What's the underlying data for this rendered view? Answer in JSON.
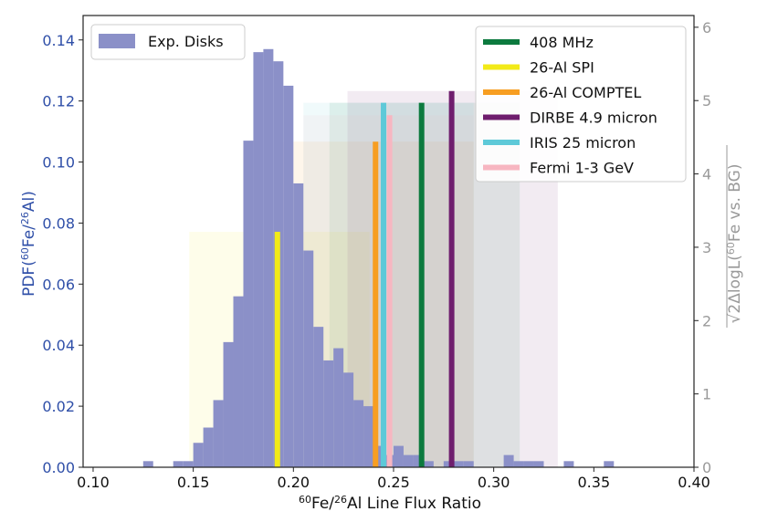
{
  "chart_data": {
    "type": "bar",
    "xlabel_parts": {
      "sup1": "60",
      "base1": "Fe/",
      "sup2": "26",
      "base2": "Al Line Flux Ratio"
    },
    "ylabel_left_parts": {
      "pre": "PDF(",
      "sup1": "60",
      "mid": "Fe/",
      "sup2": "26",
      "post": "Al)"
    },
    "ylabel_right_parts": {
      "root": "√",
      "pre": "2ΔlogL(",
      "sup": "60",
      "post": "Fe vs. BG)"
    },
    "xlim": [
      0.095,
      0.4
    ],
    "ylim_left": [
      0,
      0.148
    ],
    "ylim_right": [
      0,
      6.16
    ],
    "x_ticks": [
      "0.10",
      "0.15",
      "0.20",
      "0.25",
      "0.30",
      "0.35",
      "0.40"
    ],
    "x_tick_values": [
      0.1,
      0.15,
      0.2,
      0.25,
      0.3,
      0.35,
      0.4
    ],
    "y_left_ticks": [
      "0.00",
      "0.02",
      "0.04",
      "0.06",
      "0.08",
      "0.10",
      "0.12",
      "0.14"
    ],
    "y_left_tick_values": [
      0.0,
      0.02,
      0.04,
      0.06,
      0.08,
      0.1,
      0.12,
      0.14
    ],
    "y_right_ticks": [
      "0",
      "1",
      "2",
      "3",
      "4",
      "5",
      "6"
    ],
    "y_right_tick_values": [
      0,
      1,
      2,
      3,
      4,
      5,
      6
    ],
    "histogram": {
      "name": "Exp. Disks",
      "color": "#8b90c8",
      "bins": [
        [
          0.125,
          0.13,
          0.002
        ],
        [
          0.14,
          0.145,
          0.002
        ],
        [
          0.145,
          0.15,
          0.002
        ],
        [
          0.15,
          0.155,
          0.008
        ],
        [
          0.155,
          0.16,
          0.013
        ],
        [
          0.16,
          0.165,
          0.022
        ],
        [
          0.165,
          0.17,
          0.041
        ],
        [
          0.17,
          0.175,
          0.056
        ],
        [
          0.175,
          0.18,
          0.107
        ],
        [
          0.18,
          0.185,
          0.136
        ],
        [
          0.185,
          0.19,
          0.137
        ],
        [
          0.19,
          0.195,
          0.133
        ],
        [
          0.195,
          0.2,
          0.125
        ],
        [
          0.2,
          0.205,
          0.093
        ],
        [
          0.205,
          0.21,
          0.071
        ],
        [
          0.21,
          0.215,
          0.046
        ],
        [
          0.215,
          0.22,
          0.035
        ],
        [
          0.22,
          0.225,
          0.039
        ],
        [
          0.225,
          0.23,
          0.031
        ],
        [
          0.23,
          0.235,
          0.022
        ],
        [
          0.235,
          0.24,
          0.02
        ],
        [
          0.24,
          0.245,
          0.007
        ],
        [
          0.245,
          0.25,
          0.004
        ],
        [
          0.25,
          0.255,
          0.007
        ],
        [
          0.255,
          0.26,
          0.004
        ],
        [
          0.26,
          0.265,
          0.004
        ],
        [
          0.265,
          0.27,
          0.002
        ],
        [
          0.275,
          0.28,
          0.002
        ],
        [
          0.28,
          0.285,
          0.002
        ],
        [
          0.285,
          0.29,
          0.002
        ],
        [
          0.305,
          0.31,
          0.004
        ],
        [
          0.31,
          0.315,
          0.002
        ],
        [
          0.315,
          0.32,
          0.002
        ],
        [
          0.32,
          0.325,
          0.002
        ],
        [
          0.335,
          0.34,
          0.002
        ],
        [
          0.355,
          0.36,
          0.002
        ]
      ]
    },
    "tracers": [
      {
        "name": "408 MHz",
        "color": "#0c7a3e",
        "x": 0.264,
        "significance": 4.97,
        "band": [
          0.218,
          0.313
        ],
        "band_top": 4.97
      },
      {
        "name": "26-Al SPI",
        "color": "#f2ea18",
        "x": 0.192,
        "significance": 3.21,
        "band": [
          0.148,
          0.238
        ],
        "band_top": 3.21
      },
      {
        "name": "26-Al COMPTEL",
        "color": "#f79e22",
        "x": 0.241,
        "significance": 4.44,
        "band": [
          0.192,
          0.29
        ],
        "band_top": 4.44
      },
      {
        "name": "DIRBE 4.9 micron",
        "color": "#6f1e6e",
        "x": 0.279,
        "significance": 5.13,
        "band": [
          0.227,
          0.332
        ],
        "band_top": 5.13
      },
      {
        "name": "IRIS 25 micron",
        "color": "#5ec9d8",
        "x": 0.245,
        "significance": 4.97,
        "band": [
          0.205,
          0.29
        ],
        "band_top": 4.97
      },
      {
        "name": "Fermi 1-3 GeV",
        "color": "#f7b6c1",
        "x": 0.248,
        "significance": 4.8,
        "band": [
          0.205,
          0.29
        ],
        "band_top": 4.8
      }
    ],
    "legend_left_position": "top-left",
    "legend_right_position": "top-right",
    "left_axis_color": "#2f4fa8",
    "right_axis_color": "#9a9a9a"
  }
}
